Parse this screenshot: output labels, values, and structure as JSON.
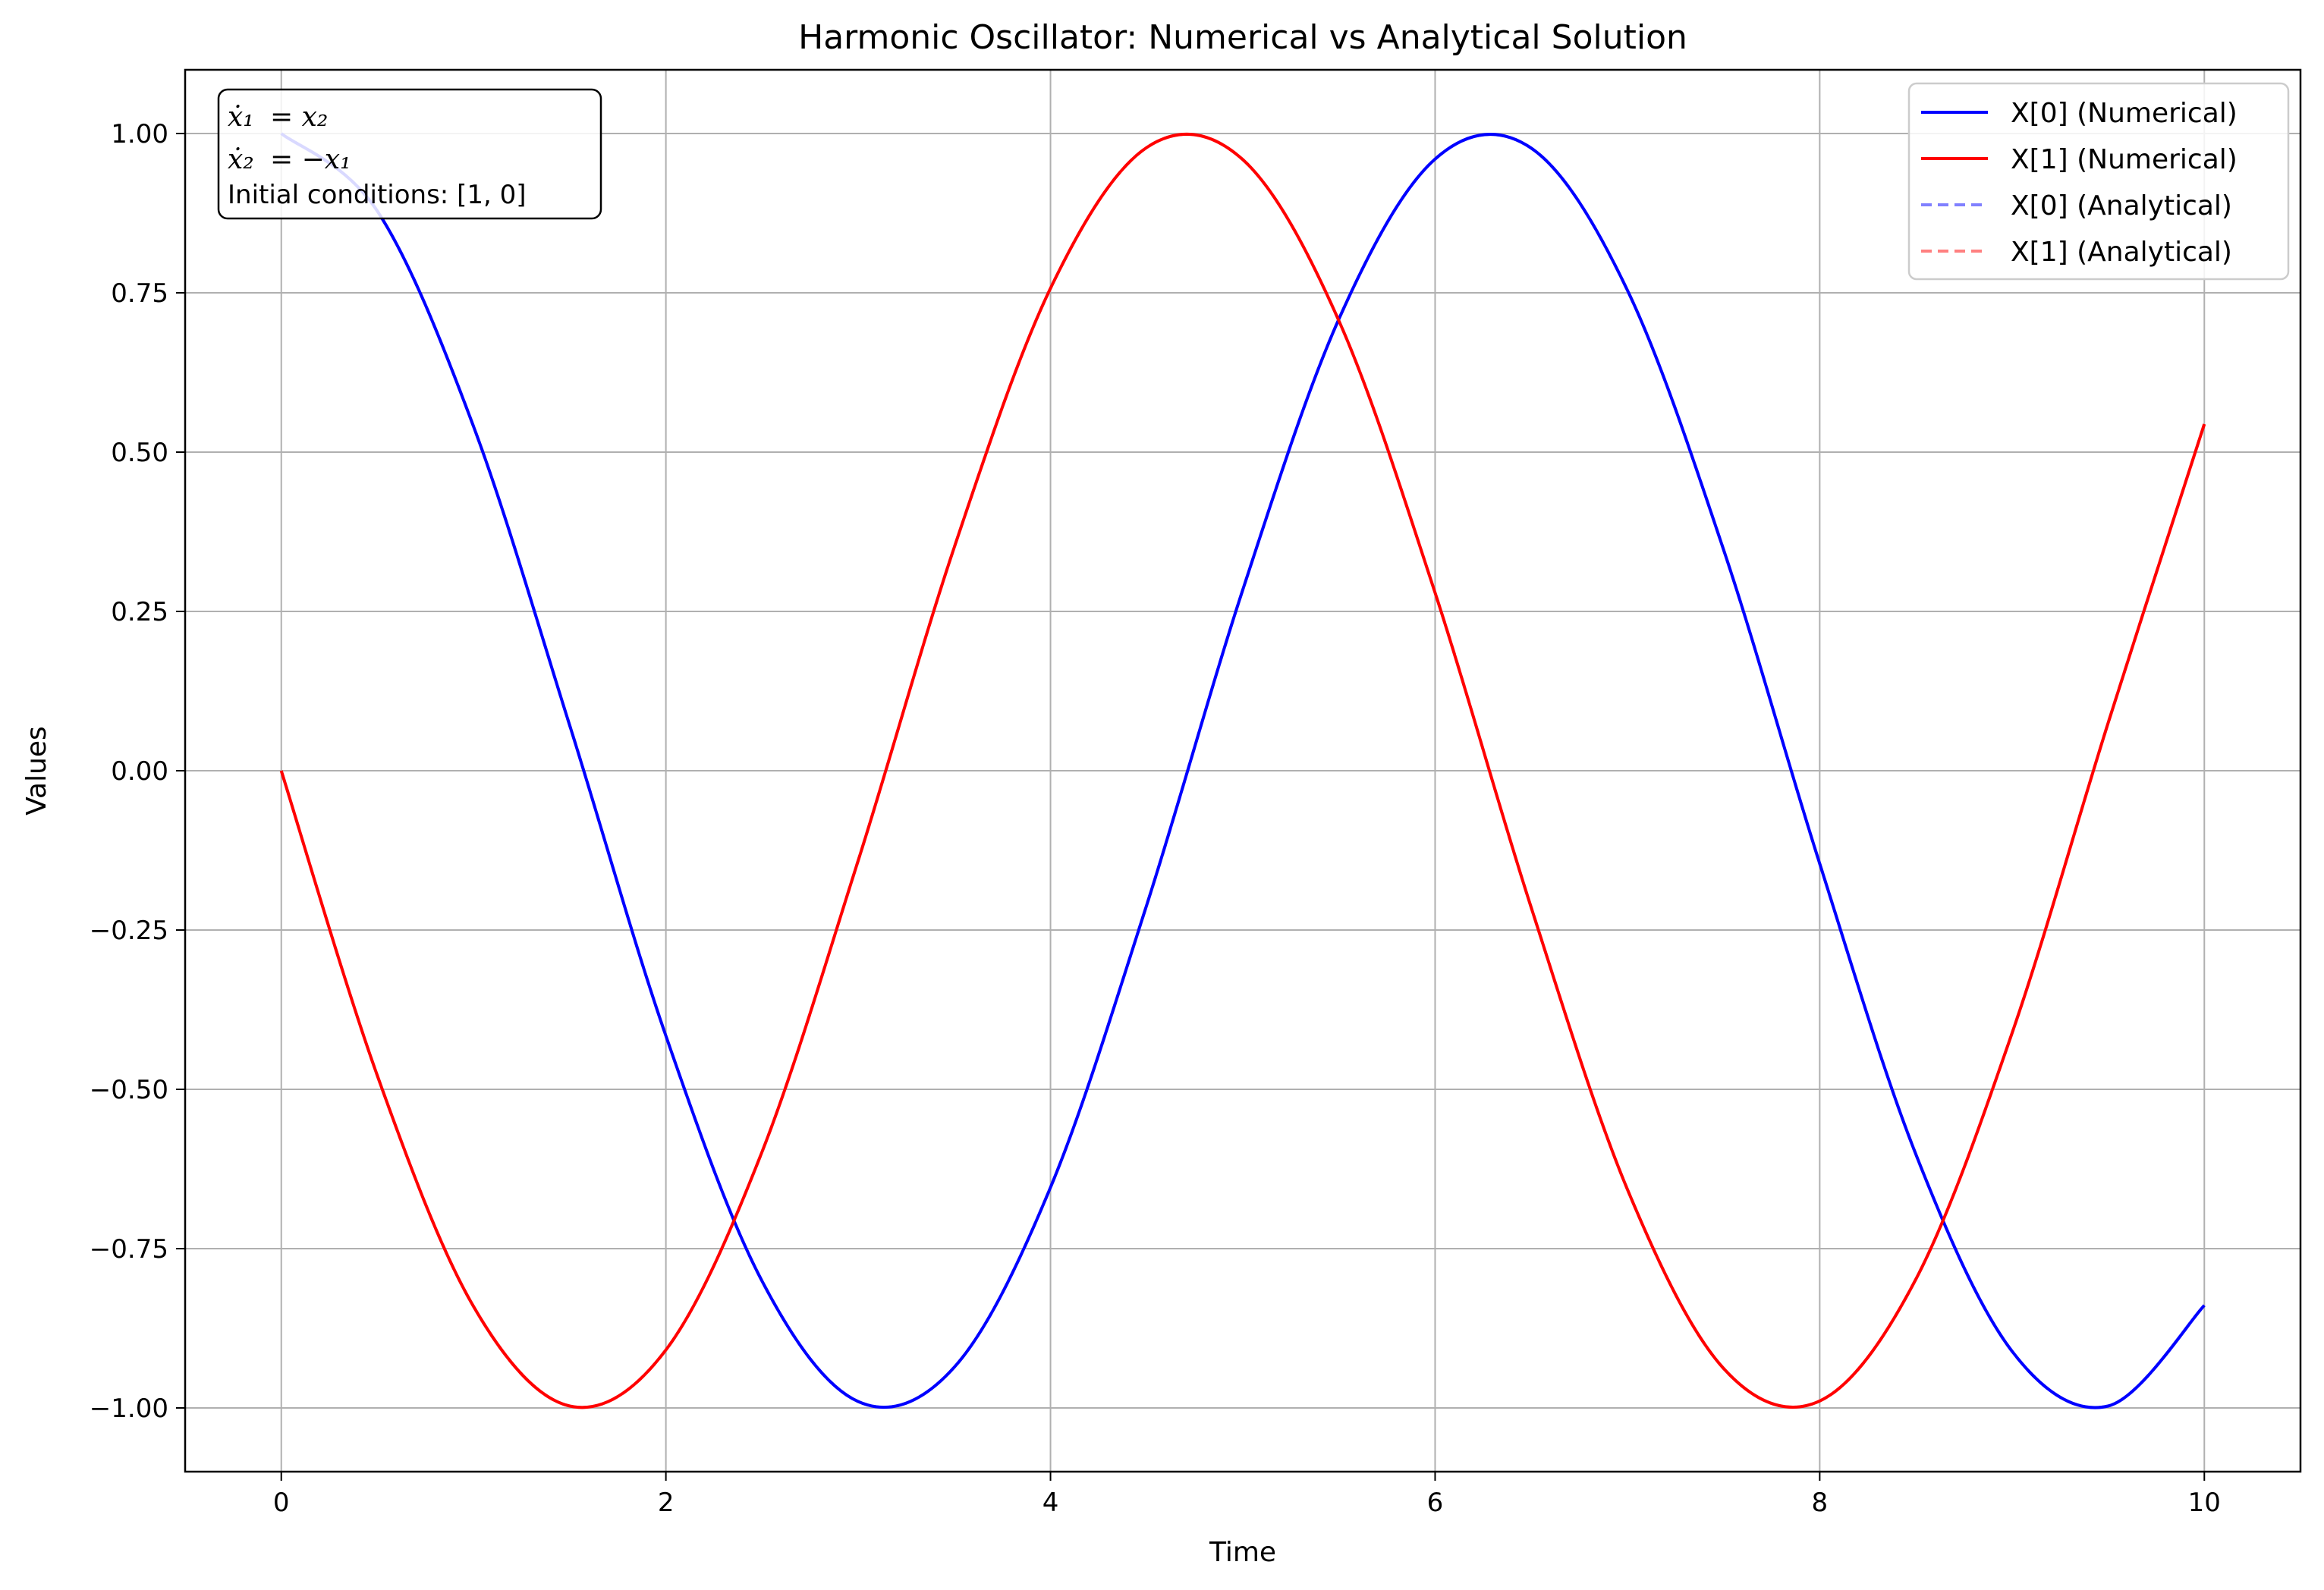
{
  "chart_data": {
    "type": "line",
    "title": "Harmonic Oscillator: Numerical vs Analytical Solution",
    "xlabel": "Time",
    "ylabel": "Values",
    "xlim": [
      -0.5,
      10.5
    ],
    "ylim": [
      -1.1,
      1.1
    ],
    "xticks": [
      0,
      2,
      4,
      6,
      8,
      10
    ],
    "xtick_labels": [
      "0",
      "2",
      "4",
      "6",
      "8",
      "10"
    ],
    "yticks": [
      -1.0,
      -0.75,
      -0.5,
      -0.25,
      0.0,
      0.25,
      0.5,
      0.75,
      1.0
    ],
    "ytick_labels": [
      "−1.00",
      "−0.75",
      "−0.50",
      "−0.25",
      "0.00",
      "0.25",
      "0.50",
      "0.75",
      "1.00"
    ],
    "grid": true,
    "legend_position": "top-right",
    "x": [
      0,
      0.5,
      1,
      1.5,
      2,
      2.5,
      3,
      3.5,
      4,
      4.5,
      5,
      5.5,
      6,
      6.5,
      7,
      7.5,
      8,
      8.5,
      9,
      9.5,
      10
    ],
    "series": [
      {
        "name": "X[0] (Numerical)",
        "color": "#0000ff",
        "style": "solid",
        "values": [
          1.0,
          0.878,
          0.54,
          0.071,
          -0.416,
          -0.801,
          -0.99,
          -0.936,
          -0.654,
          -0.211,
          0.284,
          0.709,
          0.96,
          0.977,
          0.754,
          0.347,
          -0.146,
          -0.602,
          -0.911,
          -0.997,
          -0.839
        ]
      },
      {
        "name": "X[1] (Numerical)",
        "color": "#ff0000",
        "style": "solid",
        "values": [
          0.0,
          -0.479,
          -0.841,
          -0.997,
          -0.909,
          -0.598,
          -0.141,
          0.351,
          0.757,
          0.978,
          0.959,
          0.706,
          0.279,
          -0.215,
          -0.657,
          -0.938,
          -0.989,
          -0.798,
          -0.412,
          0.075,
          0.544
        ]
      },
      {
        "name": "X[0] (Analytical)",
        "color": "#8080ff",
        "style": "dashed",
        "values": [
          1.0,
          0.878,
          0.54,
          0.071,
          -0.416,
          -0.801,
          -0.99,
          -0.936,
          -0.654,
          -0.211,
          0.284,
          0.709,
          0.96,
          0.977,
          0.754,
          0.347,
          -0.146,
          -0.602,
          -0.911,
          -0.997,
          -0.839
        ]
      },
      {
        "name": "X[1] (Analytical)",
        "color": "#ff8080",
        "style": "dashed",
        "values": [
          0.0,
          -0.479,
          -0.841,
          -0.997,
          -0.909,
          -0.598,
          -0.141,
          0.351,
          0.757,
          0.978,
          0.959,
          0.706,
          0.279,
          -0.215,
          -0.657,
          -0.938,
          -0.989,
          -0.798,
          -0.412,
          0.075,
          0.544
        ]
      }
    ],
    "annotation": {
      "eq1_lhs": "ẋ₁",
      "eq1_rhs": "= x₂",
      "eq2_lhs": "ẋ₂",
      "eq2_rhs": "= −x₁",
      "initial_conditions": "Initial conditions: [1, 0]"
    }
  }
}
